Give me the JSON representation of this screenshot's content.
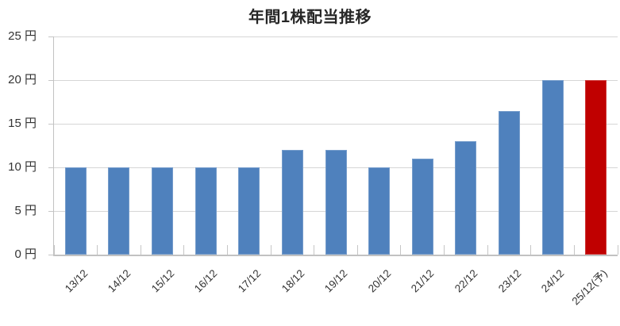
{
  "chart_data": {
    "type": "bar",
    "title": "年間1株配当推移",
    "unit": "円",
    "categories": [
      "13/12",
      "14/12",
      "15/12",
      "16/12",
      "17/12",
      "18/12",
      "19/12",
      "20/12",
      "21/12",
      "22/12",
      "23/12",
      "24/12",
      "25/12(予)"
    ],
    "values": [
      10,
      10,
      10,
      10,
      10,
      12,
      12,
      10,
      11,
      13,
      16.5,
      20,
      20
    ],
    "forecast_category": "25/12(予)",
    "forecast_index": 12,
    "y_axis": {
      "min": 0,
      "max": 25,
      "step": 5,
      "tick_labels": [
        "0 円",
        "5 円",
        "10 円",
        "15 円",
        "20 円",
        "25 円"
      ]
    },
    "grid": true,
    "legend": "none",
    "colors": {
      "bar": "#4F81BD",
      "forecast_bar": "#C00000",
      "gridline": "#D6D6D6",
      "axis": "#C2C2C2",
      "tick": "#C6C6C6",
      "title_text": "#262626",
      "label_text": "#333333",
      "background": "#FFFFFF"
    }
  }
}
